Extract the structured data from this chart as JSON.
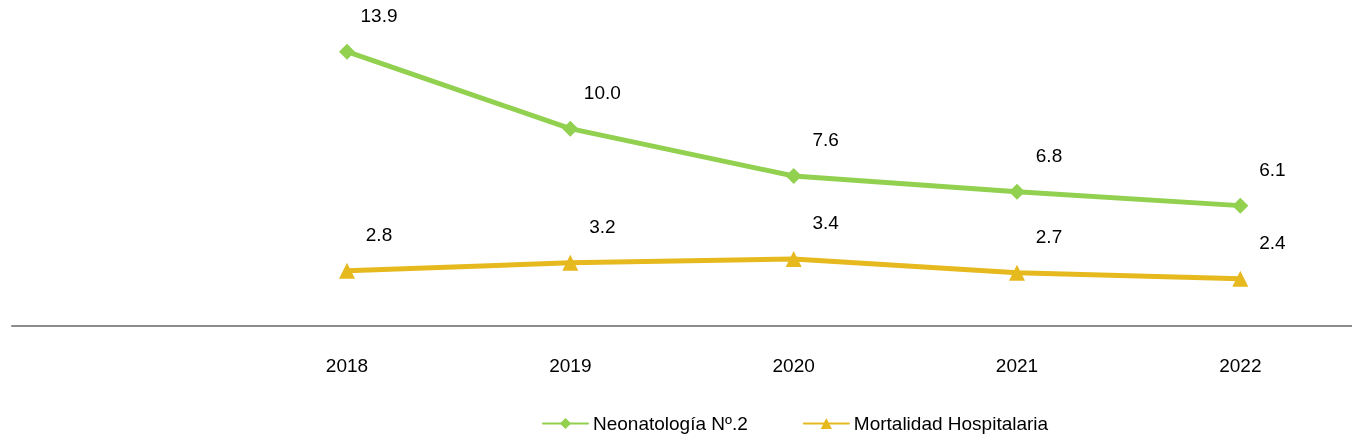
{
  "chart_data": {
    "type": "line",
    "categories": [
      null,
      "2018",
      "2019",
      "2020",
      "2021",
      "2022"
    ],
    "series": [
      {
        "name": "Neonatología Nº.2",
        "color": "#92d050",
        "marker": "diamond",
        "values": [
          null,
          13.9,
          10,
          7.6,
          6.8,
          6.1
        ],
        "value_labels": [
          null,
          "13.9",
          "10.0",
          "7.6",
          "6.8",
          "6.1"
        ]
      },
      {
        "name": "Mortalidad Hospitalaria",
        "color": "#e6b91e",
        "marker": "triangle",
        "values": [
          null,
          2.8,
          3.2,
          3.4,
          2.7,
          2.4
        ],
        "value_labels": [
          null,
          "2.8",
          "3.2",
          "3.4",
          "2.7",
          "2.4"
        ]
      }
    ],
    "tick_labels": "x",
    "grid": false,
    "legend": "bottom",
    "line_style": "solid"
  }
}
